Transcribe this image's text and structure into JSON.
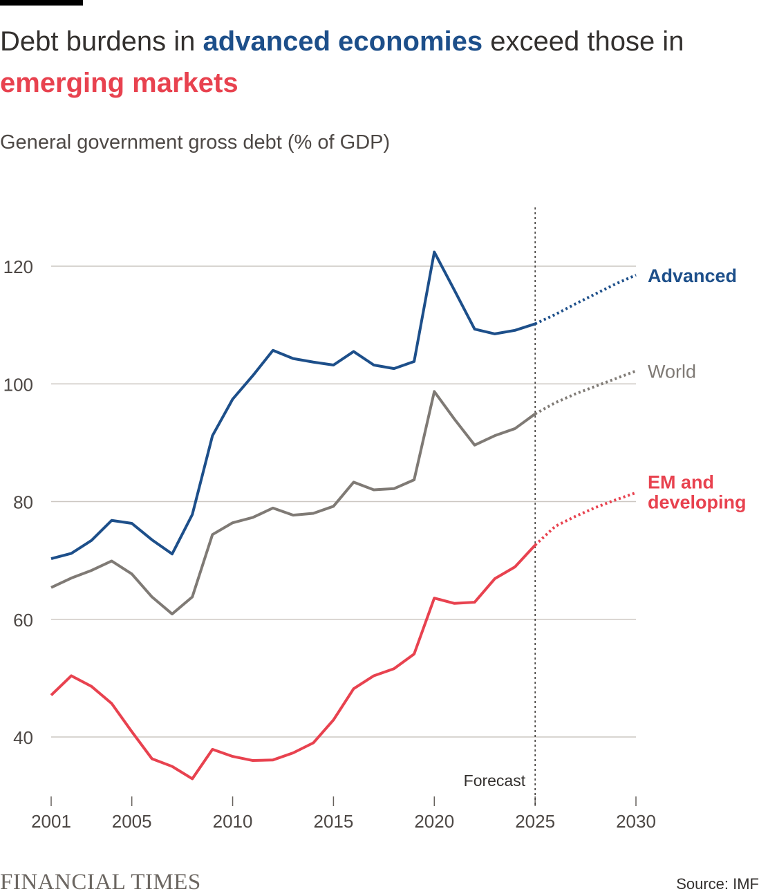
{
  "title": {
    "part1": "Debt burdens in ",
    "part2": "advanced economies",
    "part3": " exceed those in ",
    "part4": "emerging markets"
  },
  "subtitle": "General government gross debt (% of GDP)",
  "footer": {
    "logo": "FINANCIAL TIMES",
    "source": "Source: IMF"
  },
  "colors": {
    "advanced": "#1d4f8a",
    "world": "#7f7a75",
    "em": "#e8424f",
    "grid": "#ccc7c2"
  },
  "chart_data": {
    "type": "line",
    "title": "Debt burdens in advanced economies exceed those in emerging markets",
    "ylabel": "General government gross debt (% of GDP)",
    "ylim": [
      30,
      130
    ],
    "xlim": [
      2001,
      2030
    ],
    "yticks": [
      40,
      60,
      80,
      100,
      120
    ],
    "xticks": [
      2001,
      2005,
      2010,
      2015,
      2020,
      2025,
      2030
    ],
    "grid": true,
    "forecast_from": 2025,
    "forecast_label": "Forecast",
    "x": [
      2001,
      2002,
      2003,
      2004,
      2005,
      2006,
      2007,
      2008,
      2009,
      2010,
      2011,
      2012,
      2013,
      2014,
      2015,
      2016,
      2017,
      2018,
      2019,
      2020,
      2021,
      2022,
      2023,
      2024,
      2025,
      2026,
      2027,
      2028,
      2029,
      2030
    ],
    "series": [
      {
        "name": "Advanced",
        "key": "advanced",
        "values": [
          70.3,
          71.2,
          73.4,
          76.8,
          76.3,
          73.5,
          71.1,
          77.8,
          91.2,
          97.4,
          101.4,
          105.7,
          104.3,
          103.7,
          103.2,
          105.5,
          103.2,
          102.6,
          103.8,
          122.4,
          115.9,
          109.3,
          108.5,
          109.1,
          110.2,
          111.8,
          113.6,
          115.3,
          117.0,
          118.5
        ]
      },
      {
        "name": "World",
        "key": "world",
        "values": [
          65.4,
          67.0,
          68.3,
          69.9,
          67.7,
          63.8,
          60.9,
          63.8,
          74.4,
          76.4,
          77.3,
          78.9,
          77.7,
          78.0,
          79.2,
          83.3,
          82.0,
          82.2,
          83.7,
          98.7,
          94.0,
          89.6,
          91.2,
          92.4,
          94.9,
          96.8,
          98.3,
          99.6,
          100.9,
          102.2
        ]
      },
      {
        "name": "EM and developing",
        "label_lines": [
          "EM and",
          "developing"
        ],
        "key": "em",
        "values": [
          47.1,
          50.4,
          48.6,
          45.7,
          40.9,
          36.3,
          35.0,
          32.9,
          37.9,
          36.7,
          36.0,
          36.1,
          37.3,
          39.0,
          42.9,
          48.2,
          50.4,
          51.6,
          54.1,
          63.6,
          62.7,
          62.9,
          66.9,
          68.9,
          72.6,
          75.8,
          77.5,
          79.0,
          80.3,
          81.5
        ]
      }
    ]
  }
}
